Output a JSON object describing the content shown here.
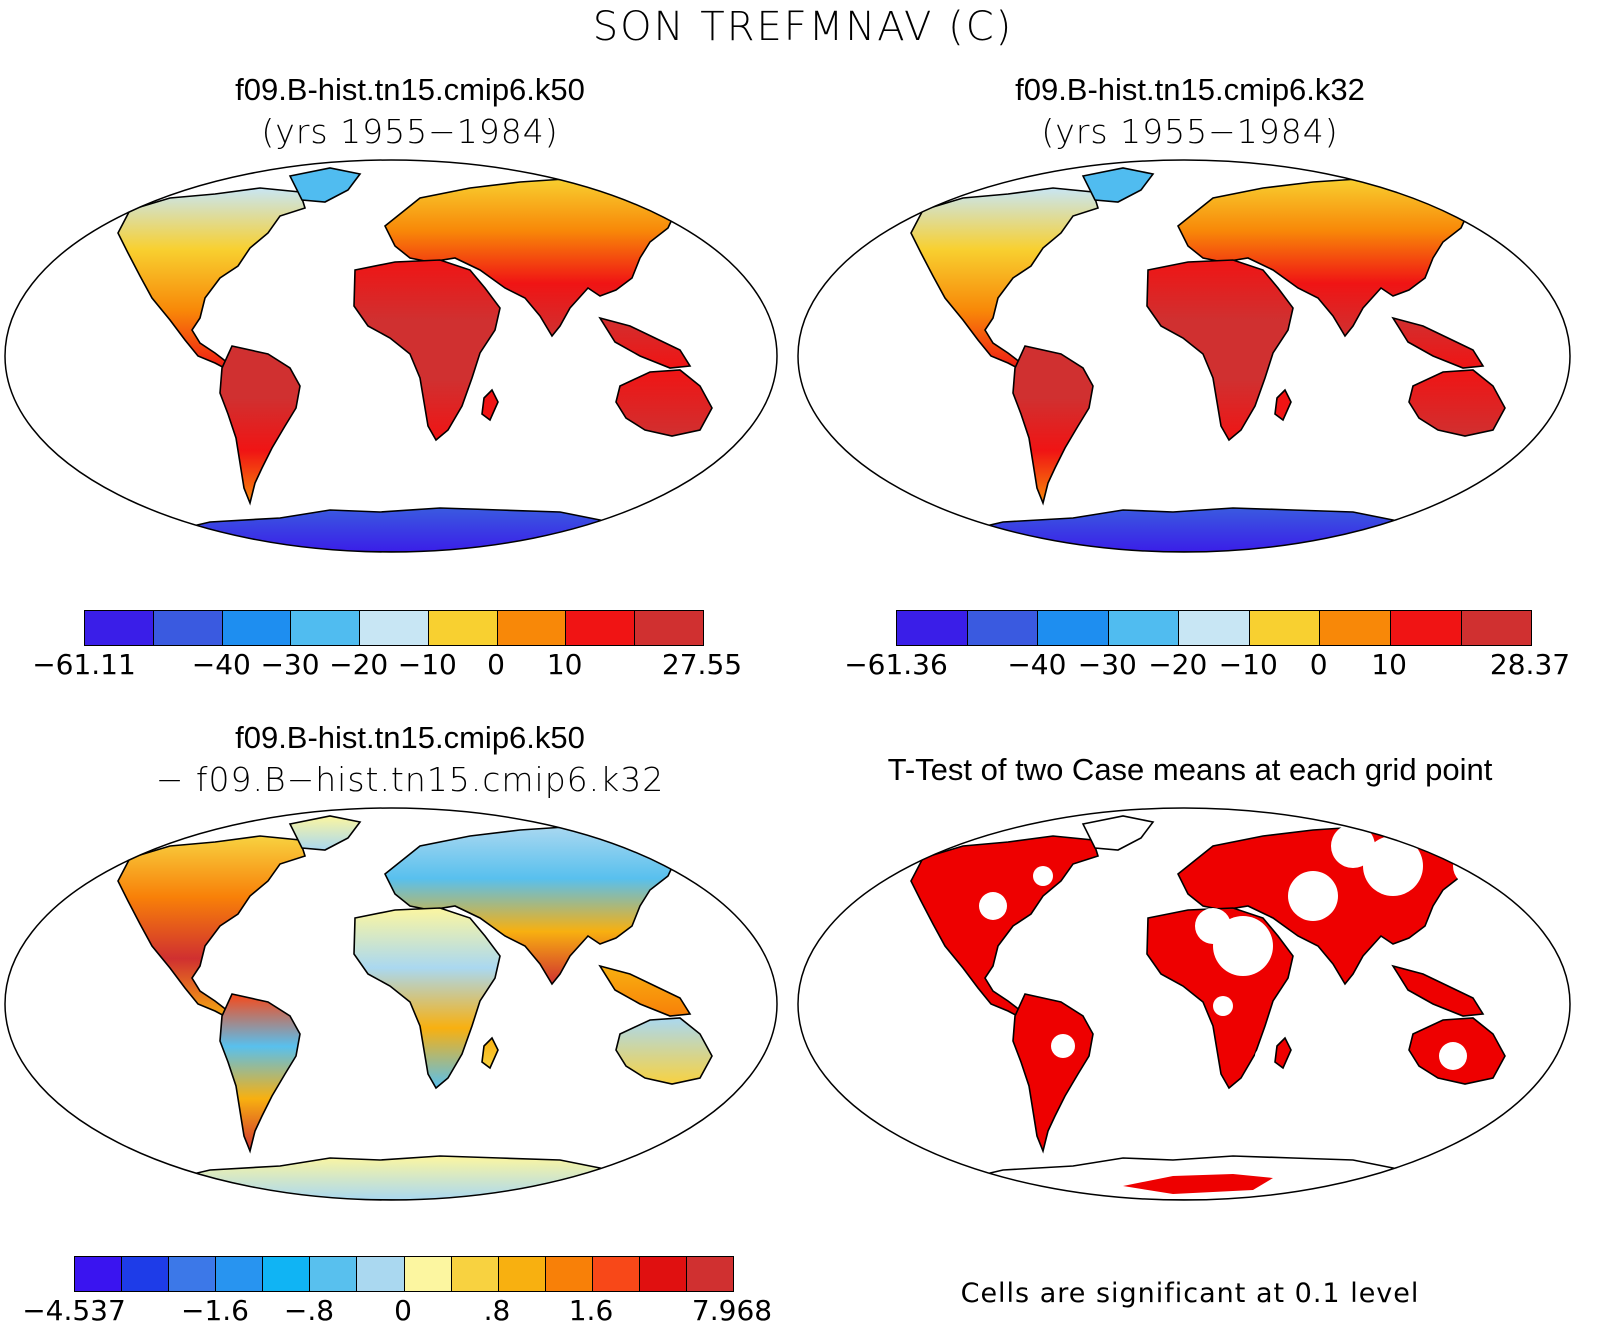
{
  "figure": {
    "main_title": "SON TREFMNAV (C)"
  },
  "panels": [
    {
      "id": "case1",
      "title": "f09.B-hist.tn15.cmip6.k50",
      "subtitle": "(yrs 1955−1984)",
      "colorbar": {
        "colors": [
          "#3a1ee8",
          "#3a5ae0",
          "#1e8ef0",
          "#50bcf0",
          "#c8e6f4",
          "#f8d030",
          "#f88808",
          "#f01414",
          "#d03030"
        ],
        "labels": [
          "−61.11",
          "−40",
          "−30",
          "−20",
          "−10",
          "0",
          "10",
          "27.55"
        ]
      }
    },
    {
      "id": "case2",
      "title": "f09.B-hist.tn15.cmip6.k32",
      "subtitle": "(yrs 1955−1984)",
      "colorbar": {
        "colors": [
          "#3a1ee8",
          "#3a5ae0",
          "#1e8ef0",
          "#50bcf0",
          "#c8e6f4",
          "#f8d030",
          "#f88808",
          "#f01414",
          "#d03030"
        ],
        "labels": [
          "−61.36",
          "−40",
          "−30",
          "−20",
          "−10",
          "0",
          "10",
          "28.37"
        ]
      }
    },
    {
      "id": "diff",
      "title": "f09.B-hist.tn15.cmip6.k50",
      "subtitle": "− f09.B−hist.tn15.cmip6.k32",
      "colorbar": {
        "colors": [
          "#3a14f0",
          "#1e3ce8",
          "#3c78e8",
          "#2894f0",
          "#10b4f4",
          "#58c0ee",
          "#aad8f0",
          "#fcf6a0",
          "#f8d240",
          "#f8b010",
          "#f88008",
          "#f84818",
          "#e01010",
          "#d03030"
        ],
        "labels": [
          "−4.537",
          "−1.6",
          "−.8",
          "0",
          ".8",
          "1.6",
          "7.968"
        ]
      }
    },
    {
      "id": "ttest",
      "title": "T-Test of two Case means at each grid point",
      "note": "Cells are significant at 0.1 level"
    }
  ]
}
